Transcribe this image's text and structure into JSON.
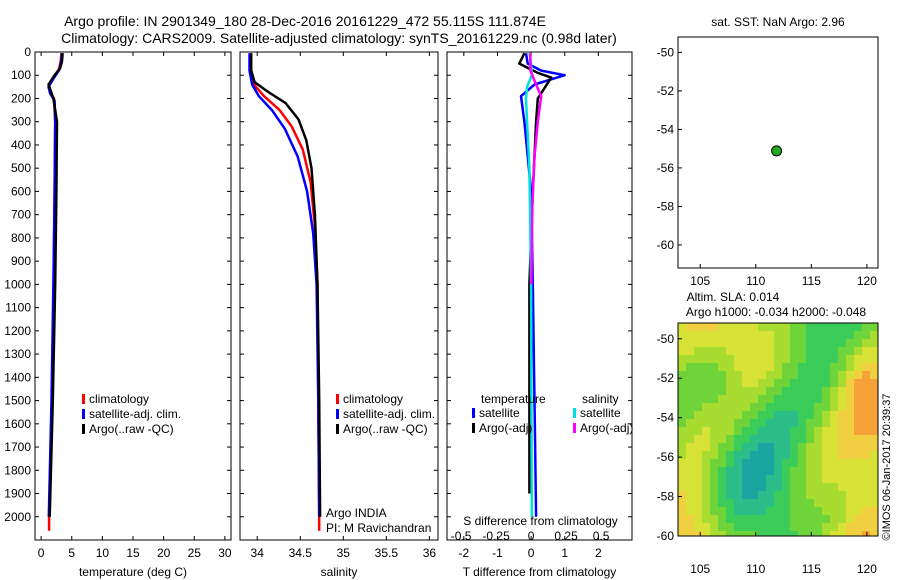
{
  "header": {
    "title_line1": "Argo profile: IN 2901349_180 28-Dec-2016 20161229_472 55.115S 111.874E",
    "title_line2": "Climatology: CARS2009. Satellite-adjusted climatology: synTS_20161229.nc (0.98d later)"
  },
  "colors": {
    "climatology": "#ff0000",
    "satellite": "#0000ff",
    "argo": "#000000",
    "satellite_salinity": "#00e0e0",
    "argo_salinity_adj": "#ff00ff",
    "float_marker": "#22aa22"
  },
  "chart_data": [
    {
      "id": "temperature",
      "type": "line",
      "xlabel": "temperature (deg C)",
      "ylabel": "",
      "xlim": [
        -1,
        31
      ],
      "ylim": [
        2100,
        0
      ],
      "xticks": [
        0,
        5,
        10,
        15,
        20,
        25,
        30
      ],
      "yticks": [
        0,
        100,
        200,
        300,
        400,
        500,
        600,
        700,
        800,
        900,
        1000,
        1100,
        1200,
        1300,
        1400,
        1500,
        1600,
        1700,
        1800,
        1900,
        2000
      ],
      "legend": {
        "position": "lower-middle",
        "entries": [
          {
            "label": "climatology",
            "color": "#ff0000"
          },
          {
            "label": "satellite-adj. clim.",
            "color": "#0000ff"
          },
          {
            "label": "Argo(..raw -QC)",
            "color": "#000000"
          }
        ]
      },
      "series": [
        {
          "name": "climatology",
          "color": "#ff0000",
          "points": [
            [
              3.3,
              5
            ],
            [
              3.2,
              40
            ],
            [
              2.9,
              75
            ],
            [
              2.0,
              110
            ],
            [
              1.3,
              140
            ],
            [
              1.4,
              170
            ],
            [
              2.1,
              200
            ],
            [
              2.3,
              300
            ],
            [
              2.2,
              600
            ],
            [
              2.05,
              1000
            ],
            [
              1.75,
              1500
            ],
            [
              1.3,
              2000
            ],
            [
              1.3,
              2060
            ]
          ]
        },
        {
          "name": "satellite-adj. clim.",
          "color": "#0000ff",
          "points": [
            [
              3.4,
              5
            ],
            [
              3.3,
              40
            ],
            [
              3.0,
              75
            ],
            [
              2.0,
              115
            ],
            [
              1.2,
              150
            ],
            [
              1.5,
              180
            ],
            [
              2.2,
              210
            ],
            [
              2.3,
              300
            ],
            [
              2.2,
              600
            ],
            [
              2.0,
              1000
            ],
            [
              1.7,
              1500
            ],
            [
              1.25,
              2000
            ]
          ]
        },
        {
          "name": "Argo(..raw -QC)",
          "color": "#000000",
          "points": [
            [
              3.5,
              5
            ],
            [
              3.4,
              40
            ],
            [
              3.1,
              70
            ],
            [
              2.2,
              100
            ],
            [
              1.2,
              140
            ],
            [
              2.0,
              200
            ],
            [
              2.6,
              300
            ],
            [
              2.5,
              600
            ],
            [
              2.3,
              1000
            ],
            [
              1.9,
              1500
            ],
            [
              1.4,
              2000
            ]
          ]
        }
      ]
    },
    {
      "id": "salinity",
      "type": "line",
      "xlabel": "salinity",
      "ylabel": "",
      "xlim": [
        33.8,
        36.1
      ],
      "ylim": [
        2100,
        0
      ],
      "xticks": [
        34,
        34.5,
        35,
        35.5,
        36
      ],
      "legend": {
        "position": "lower-right",
        "entries": [
          {
            "label": "climatology",
            "color": "#ff0000"
          },
          {
            "label": "satellite-adj. clim.",
            "color": "#0000ff"
          },
          {
            "label": "Argo(..raw -QC)",
            "color": "#000000"
          }
        ]
      },
      "annotation": {
        "line1": "Argo INDIA",
        "line2": "PI: M Ravichandran"
      },
      "series": [
        {
          "name": "climatology",
          "color": "#ff0000",
          "points": [
            [
              33.92,
              5
            ],
            [
              33.92,
              80
            ],
            [
              33.96,
              140
            ],
            [
              34.08,
              190
            ],
            [
              34.26,
              250
            ],
            [
              34.4,
              320
            ],
            [
              34.53,
              420
            ],
            [
              34.62,
              560
            ],
            [
              34.67,
              750
            ],
            [
              34.7,
              1000
            ],
            [
              34.71,
              1500
            ],
            [
              34.72,
              2000
            ],
            [
              34.72,
              2060
            ]
          ]
        },
        {
          "name": "satellite-adj. clim.",
          "color": "#0000ff",
          "points": [
            [
              33.91,
              5
            ],
            [
              33.91,
              80
            ],
            [
              33.94,
              140
            ],
            [
              34.02,
              190
            ],
            [
              34.17,
              250
            ],
            [
              34.32,
              330
            ],
            [
              34.47,
              450
            ],
            [
              34.58,
              600
            ],
            [
              34.65,
              780
            ],
            [
              34.69,
              1000
            ],
            [
              34.71,
              1500
            ],
            [
              34.72,
              2000
            ]
          ]
        },
        {
          "name": "Argo(..raw -QC)",
          "color": "#000000",
          "points": [
            [
              33.93,
              5
            ],
            [
              33.93,
              80
            ],
            [
              33.97,
              130
            ],
            [
              34.12,
              170
            ],
            [
              34.33,
              220
            ],
            [
              34.48,
              290
            ],
            [
              34.57,
              380
            ],
            [
              34.63,
              500
            ],
            [
              34.67,
              700
            ],
            [
              34.7,
              1000
            ],
            [
              34.72,
              1500
            ],
            [
              34.73,
              2000
            ]
          ]
        }
      ]
    },
    {
      "id": "difference",
      "type": "line",
      "xlabel": "T difference from climatology",
      "top_label": "S difference from climatology",
      "ylabel": "",
      "xlim": [
        -2.5,
        3.0
      ],
      "ylim": [
        2100,
        0
      ],
      "xticks": [
        -2,
        -1,
        0,
        1,
        2
      ],
      "xtick_labels": [
        "-2",
        "-1",
        "0",
        "1",
        "2"
      ],
      "s_ticks": [
        -0.5,
        -0.25,
        0,
        0.25,
        0.5
      ],
      "s_tick_labels": [
        "-0.5",
        "-0.25",
        "0",
        "0.25",
        "0.5"
      ],
      "legend": {
        "position": "lower-middle",
        "temperature_title": "temperature",
        "salinity_title": "salinity",
        "temperature_entries": [
          {
            "label": "satellite",
            "color": "#0000ff"
          },
          {
            "label": "Argo(-adj)",
            "color": "#000000"
          }
        ],
        "salinity_entries": [
          {
            "label": "satellite",
            "color": "#00e0e0"
          },
          {
            "label": "Argo(-adj)",
            "color": "#ff00ff"
          }
        ]
      },
      "series": [
        {
          "name": "temperature satellite",
          "color": "#0000ff",
          "points": [
            [
              -0.15,
              5
            ],
            [
              -0.1,
              50
            ],
            [
              0.3,
              80
            ],
            [
              1.0,
              100
            ],
            [
              0.1,
              140
            ],
            [
              -0.3,
              190
            ],
            [
              -0.2,
              300
            ],
            [
              0.0,
              600
            ],
            [
              0.05,
              1000
            ],
            [
              0.1,
              1500
            ],
            [
              0.15,
              2000
            ]
          ]
        },
        {
          "name": "temperature Argo(-adj)",
          "color": "#000000",
          "points": [
            [
              -0.2,
              5
            ],
            [
              -0.35,
              50
            ],
            [
              0.2,
              90
            ],
            [
              0.6,
              110
            ],
            [
              0.2,
              200
            ],
            [
              0.15,
              300
            ],
            [
              0.05,
              600
            ],
            [
              -0.05,
              1000
            ],
            [
              -0.05,
              1500
            ],
            [
              -0.05,
              1900
            ]
          ]
        },
        {
          "name": "salinity satellite",
          "color": "#00e0e0",
          "points": [
            [
              -0.05,
              5
            ],
            [
              0.0,
              50
            ],
            [
              0.02,
              100
            ],
            [
              -0.12,
              150
            ],
            [
              -0.15,
              200
            ],
            [
              -0.12,
              300
            ],
            [
              -0.05,
              500
            ],
            [
              -0.02,
              800
            ],
            [
              0.0,
              1000
            ],
            [
              0.01,
              1500
            ],
            [
              0.02,
              2000
            ]
          ]
        },
        {
          "name": "salinity Argo(-adj)",
          "color": "#ff00ff",
          "points": [
            [
              -0.02,
              5
            ],
            [
              -0.02,
              80
            ],
            [
              0.15,
              140
            ],
            [
              0.3,
              190
            ],
            [
              0.2,
              300
            ],
            [
              0.1,
              450
            ],
            [
              0.04,
              650
            ],
            [
              0.01,
              1000
            ]
          ]
        }
      ]
    },
    {
      "id": "sst_map",
      "type": "scatter",
      "title": "sat. SST: NaN Argo: 2.96",
      "xlim": [
        103,
        121
      ],
      "ylim": [
        -61.2,
        -49.2
      ],
      "xticks": [
        105,
        110,
        115,
        120
      ],
      "yticks": [
        -50,
        -52,
        -54,
        -56,
        -58,
        -60
      ],
      "points": [
        {
          "x": 111.874,
          "y": -55.115,
          "color": "#22aa22"
        }
      ]
    },
    {
      "id": "sla_map",
      "type": "heatmap",
      "title_line1": "Altim. SLA: 0.014",
      "title_line2": "Argo h1000: -0.034 h2000: -0.048",
      "xlim": [
        103,
        121
      ],
      "ylim": [
        -60,
        -49.2
      ],
      "xticks": [
        105,
        110,
        115,
        120
      ],
      "yticks": [
        -50,
        -52,
        -54,
        -56,
        -58,
        -60
      ],
      "colors": [
        "#1aa6a0",
        "#2bbd8a",
        "#3ccc5a",
        "#6ed43a",
        "#a8dc30",
        "#d8e236",
        "#f0d040",
        "#f6a238"
      ]
    }
  ],
  "side_label": "©IMOS 06-Jan-2017 20:39:37"
}
